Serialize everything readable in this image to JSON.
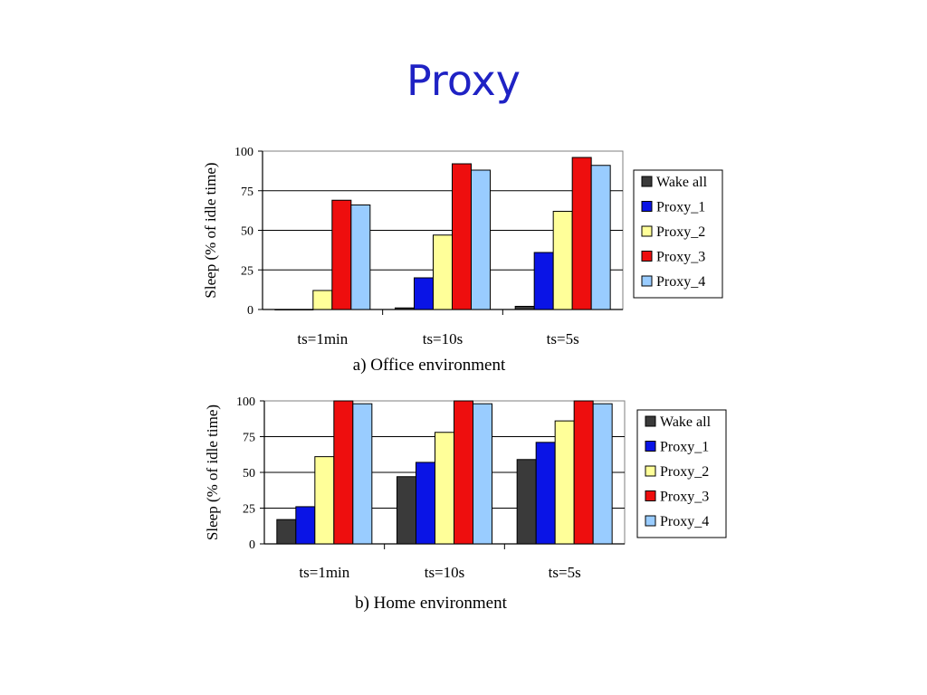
{
  "slide": {
    "title": "Proxy"
  },
  "chart_data": [
    {
      "type": "bar",
      "title": "a) Office environment",
      "xlabel": "",
      "ylabel": "Sleep (% of idle time)",
      "ylim": [
        0,
        100
      ],
      "yticks": [
        0,
        25,
        50,
        75,
        100
      ],
      "categories": [
        "ts=1min",
        "ts=10s",
        "ts=5s"
      ],
      "legend_position": "right",
      "series": [
        {
          "name": "Wake all",
          "color": "#3a3a3a",
          "values": [
            0,
            1,
            2
          ]
        },
        {
          "name": "Proxy_1",
          "color": "#0a14e6",
          "values": [
            0,
            20,
            36
          ]
        },
        {
          "name": "Proxy_2",
          "color": "#ffff99",
          "values": [
            12,
            47,
            62
          ]
        },
        {
          "name": "Proxy_3",
          "color": "#ee0e0e",
          "values": [
            69,
            92,
            96
          ]
        },
        {
          "name": "Proxy_4",
          "color": "#99ccff",
          "values": [
            66,
            88,
            91
          ]
        }
      ]
    },
    {
      "type": "bar",
      "title": "b) Home environment",
      "xlabel": "",
      "ylabel": "Sleep (% of idle time)",
      "ylim": [
        0,
        100
      ],
      "yticks": [
        0,
        25,
        50,
        75,
        100
      ],
      "categories": [
        "ts=1min",
        "ts=10s",
        "ts=5s"
      ],
      "legend_position": "right",
      "series": [
        {
          "name": "Wake all",
          "color": "#3a3a3a",
          "values": [
            17,
            47,
            59
          ]
        },
        {
          "name": "Proxy_1",
          "color": "#0a14e6",
          "values": [
            26,
            57,
            71
          ]
        },
        {
          "name": "Proxy_2",
          "color": "#ffff99",
          "values": [
            61,
            78,
            86
          ]
        },
        {
          "name": "Proxy_3",
          "color": "#ee0e0e",
          "values": [
            100,
            100,
            100
          ]
        },
        {
          "name": "Proxy_4",
          "color": "#99ccff",
          "values": [
            98,
            98,
            98
          ]
        }
      ]
    }
  ]
}
